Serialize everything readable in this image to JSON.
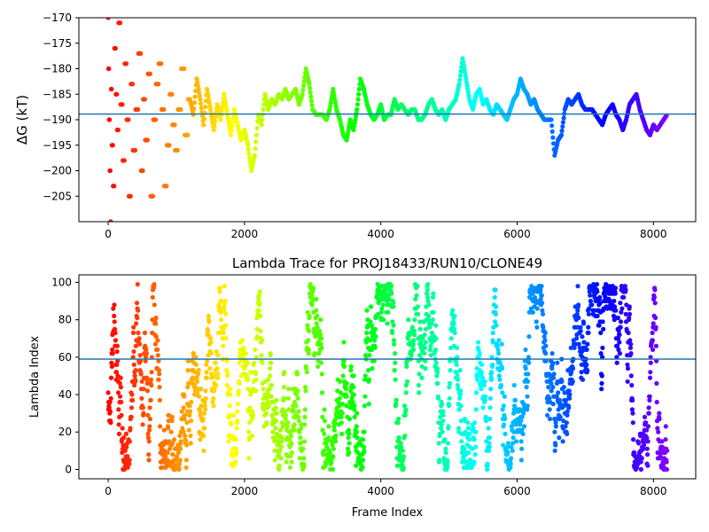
{
  "chart_data": [
    {
      "type": "scatter",
      "title": "",
      "xlabel": "",
      "ylabel": "ΔG (kT)",
      "xlim": [
        -430,
        8620
      ],
      "ylim": [
        -210,
        -170
      ],
      "xticks": [
        0,
        2000,
        4000,
        6000,
        8000
      ],
      "yticks": [
        -205,
        -200,
        -195,
        -190,
        -185,
        -180,
        -175,
        -170
      ],
      "hline": -188.9,
      "colormap": "rainbow (reversed: early frames red, late frames violet)",
      "grid": false,
      "series": [
        {
          "x": [
            0,
            10,
            20,
            30,
            40,
            50,
            60,
            80,
            100,
            120,
            140,
            160,
            200,
            230,
            260,
            290,
            320,
            350,
            380,
            420,
            460,
            500,
            530,
            560,
            600,
            640,
            680,
            720,
            760,
            800,
            840,
            880,
            920,
            960,
            1000,
            1050,
            1100,
            1150,
            1200,
            1250,
            1300,
            1350,
            1400,
            1450,
            1500,
            1550,
            1600,
            1650,
            1700,
            1750,
            1800,
            1850,
            1900,
            1950,
            2000,
            2050,
            2100,
            2150,
            2200,
            2250,
            2300,
            2350,
            2400,
            2450,
            2500,
            2550,
            2600,
            2650,
            2700,
            2750,
            2800,
            2850,
            2900,
            2950,
            3000,
            3050,
            3100,
            3150,
            3200,
            3250,
            3300,
            3350,
            3400,
            3450,
            3500,
            3550,
            3600,
            3650,
            3700,
            3750,
            3800,
            3850,
            3900,
            3950,
            4000,
            4050,
            4100,
            4150,
            4200,
            4250,
            4300,
            4350,
            4400,
            4450,
            4500,
            4550,
            4600,
            4650,
            4700,
            4750,
            4800,
            4850,
            4900,
            4950,
            5000,
            5050,
            5100,
            5150,
            5200,
            5250,
            5300,
            5350,
            5400,
            5450,
            5500,
            5550,
            5600,
            5650,
            5700,
            5750,
            5800,
            5850,
            5900,
            5950,
            6000,
            6050,
            6100,
            6150,
            6200,
            6250,
            6300,
            6350,
            6400,
            6450,
            6500,
            6550,
            6600,
            6650,
            6700,
            6750,
            6800,
            6850,
            6900,
            6950,
            7000,
            7050,
            7100,
            7150,
            7200,
            7250,
            7300,
            7350,
            7400,
            7450,
            7500,
            7550,
            7600,
            7650,
            7700,
            7750,
            7800,
            7850,
            7900,
            7950,
            8000,
            8050,
            8100,
            8150,
            8200
          ],
          "y": [
            -170,
            -180,
            -190,
            -200,
            -210,
            -184,
            -195,
            -203,
            -176,
            -185,
            -192,
            -171,
            -187,
            -198,
            -179,
            -190,
            -205,
            -183,
            -196,
            -188,
            -177,
            -200,
            -186,
            -194,
            -181,
            -205,
            -190,
            -183,
            -179,
            -188,
            -203,
            -195,
            -185,
            -191,
            -196,
            -188,
            -180,
            -193,
            -186,
            -189,
            -182,
            -186,
            -191,
            -184,
            -188,
            -192,
            -187,
            -190,
            -185,
            -189,
            -193,
            -188,
            -191,
            -194,
            -192,
            -195,
            -200,
            -197,
            -189,
            -191,
            -185,
            -188,
            -186,
            -187,
            -185,
            -186,
            -184,
            -186,
            -185,
            -184,
            -187,
            -185,
            -180,
            -183,
            -188,
            -189,
            -189,
            -189,
            -190,
            -188,
            -184,
            -188,
            -190,
            -193,
            -194,
            -190,
            -192,
            -188,
            -182,
            -184,
            -187,
            -189,
            -190,
            -189,
            -187,
            -190,
            -189,
            -189,
            -186,
            -188,
            -187,
            -188,
            -189,
            -188,
            -188,
            -190,
            -190,
            -189,
            -187,
            -186,
            -188,
            -189,
            -188,
            -190,
            -188,
            -187,
            -186,
            -183,
            -178,
            -182,
            -186,
            -188,
            -185,
            -184,
            -187,
            -186,
            -188,
            -189,
            -187,
            -188,
            -189,
            -190,
            -188,
            -186,
            -185,
            -182,
            -184,
            -185,
            -187,
            -186,
            -188,
            -189,
            -190,
            -190,
            -190,
            -197,
            -194,
            -193,
            -188,
            -186,
            -187,
            -186,
            -185,
            -187,
            -188,
            -188,
            -188,
            -189,
            -190,
            -191,
            -189,
            -188,
            -187,
            -189,
            -190,
            -192,
            -190,
            -187,
            -186,
            -185,
            -188,
            -190,
            -192,
            -193,
            -191,
            -192,
            -191,
            -190,
            -189
          ]
        }
      ]
    },
    {
      "type": "scatter",
      "title": "Lambda Trace for PROJ18433/RUN10/CLONE49",
      "xlabel": "Frame Index",
      "ylabel": "Lambda Index",
      "xlim": [
        -430,
        8620
      ],
      "ylim": [
        -5,
        104
      ],
      "xticks": [
        0,
        2000,
        4000,
        6000,
        8000
      ],
      "yticks": [
        0,
        20,
        40,
        60,
        80,
        100
      ],
      "hline": 59,
      "grid": false,
      "series": [
        {
          "x_range": [
            0,
            8200
          ],
          "y_range": [
            0,
            99
          ],
          "n_points": 2200,
          "random_seed": 49
        }
      ]
    }
  ]
}
